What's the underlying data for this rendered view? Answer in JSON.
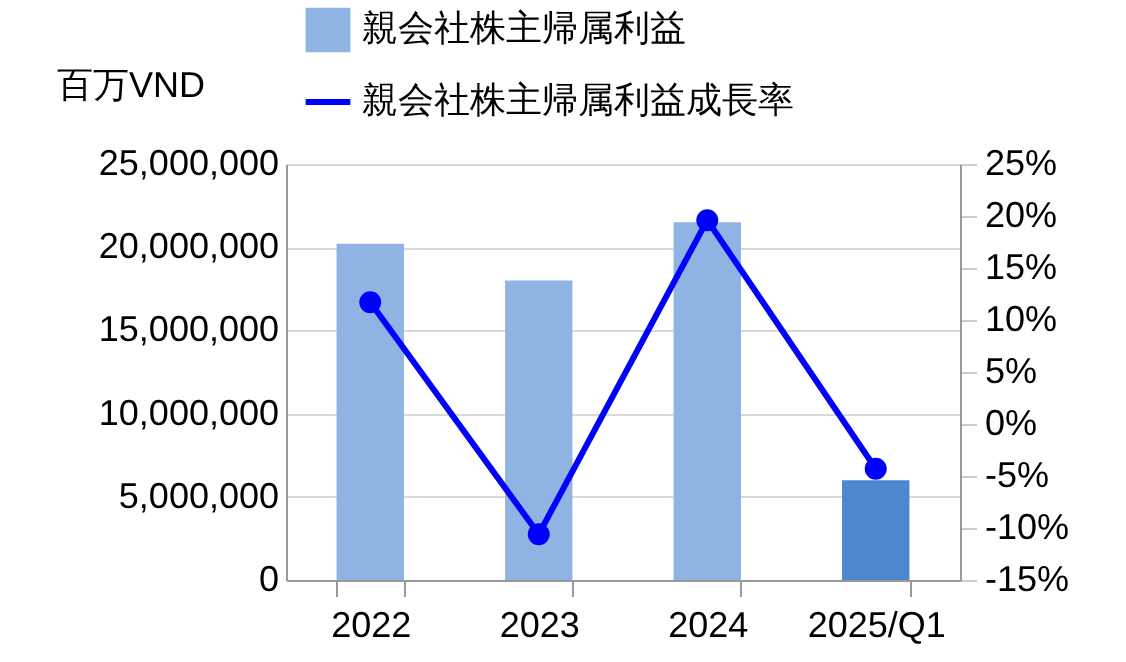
{
  "chart_data": {
    "type": "bar",
    "ylabel": "百万VND",
    "categories": [
      "2022",
      "2023",
      "2024",
      "2025/Q1"
    ],
    "series": [
      {
        "name": "親会社株主帰属利益",
        "color": "#8fb4e3",
        "colors": [
          "#8fb4e3",
          "#8fb4e3",
          "#8fb4e3",
          "#4f86d0"
        ],
        "values": [
          20200000,
          18000000,
          21500000,
          6000000
        ]
      },
      {
        "name": "親会社株主帰属利益成長率",
        "type": "line",
        "axis": "y2",
        "color": "#0000ff",
        "marker": "circle",
        "values": [
          11.7,
          -10.6,
          19.6,
          -4.3
        ]
      }
    ],
    "ylim": [
      0,
      25000000
    ],
    "yticks": [
      0,
      {
        "value": 5000000,
        "label": "5,000,000"
      },
      {
        "value": 10000000,
        "label": "10,000,000"
      },
      {
        "value": 15000000,
        "label": "15,000,000"
      },
      {
        "value": 20000000,
        "label": "20,000,000"
      },
      {
        "value": 25000000,
        "label": "25,000,000"
      }
    ],
    "y2lim": [
      -15,
      25
    ],
    "y2ticks": [
      {
        "value": -15,
        "label": "-15%"
      },
      {
        "value": -10,
        "label": "-10%"
      },
      {
        "value": -5,
        "label": "-5%"
      },
      {
        "value": 0,
        "label": "0%"
      },
      {
        "value": 5,
        "label": "5%"
      },
      {
        "value": 10,
        "label": "10%"
      },
      {
        "value": 15,
        "label": "15%"
      },
      {
        "value": 20,
        "label": "20%"
      },
      {
        "value": 25,
        "label": "25%"
      }
    ],
    "grid": "y",
    "legend": "top"
  }
}
